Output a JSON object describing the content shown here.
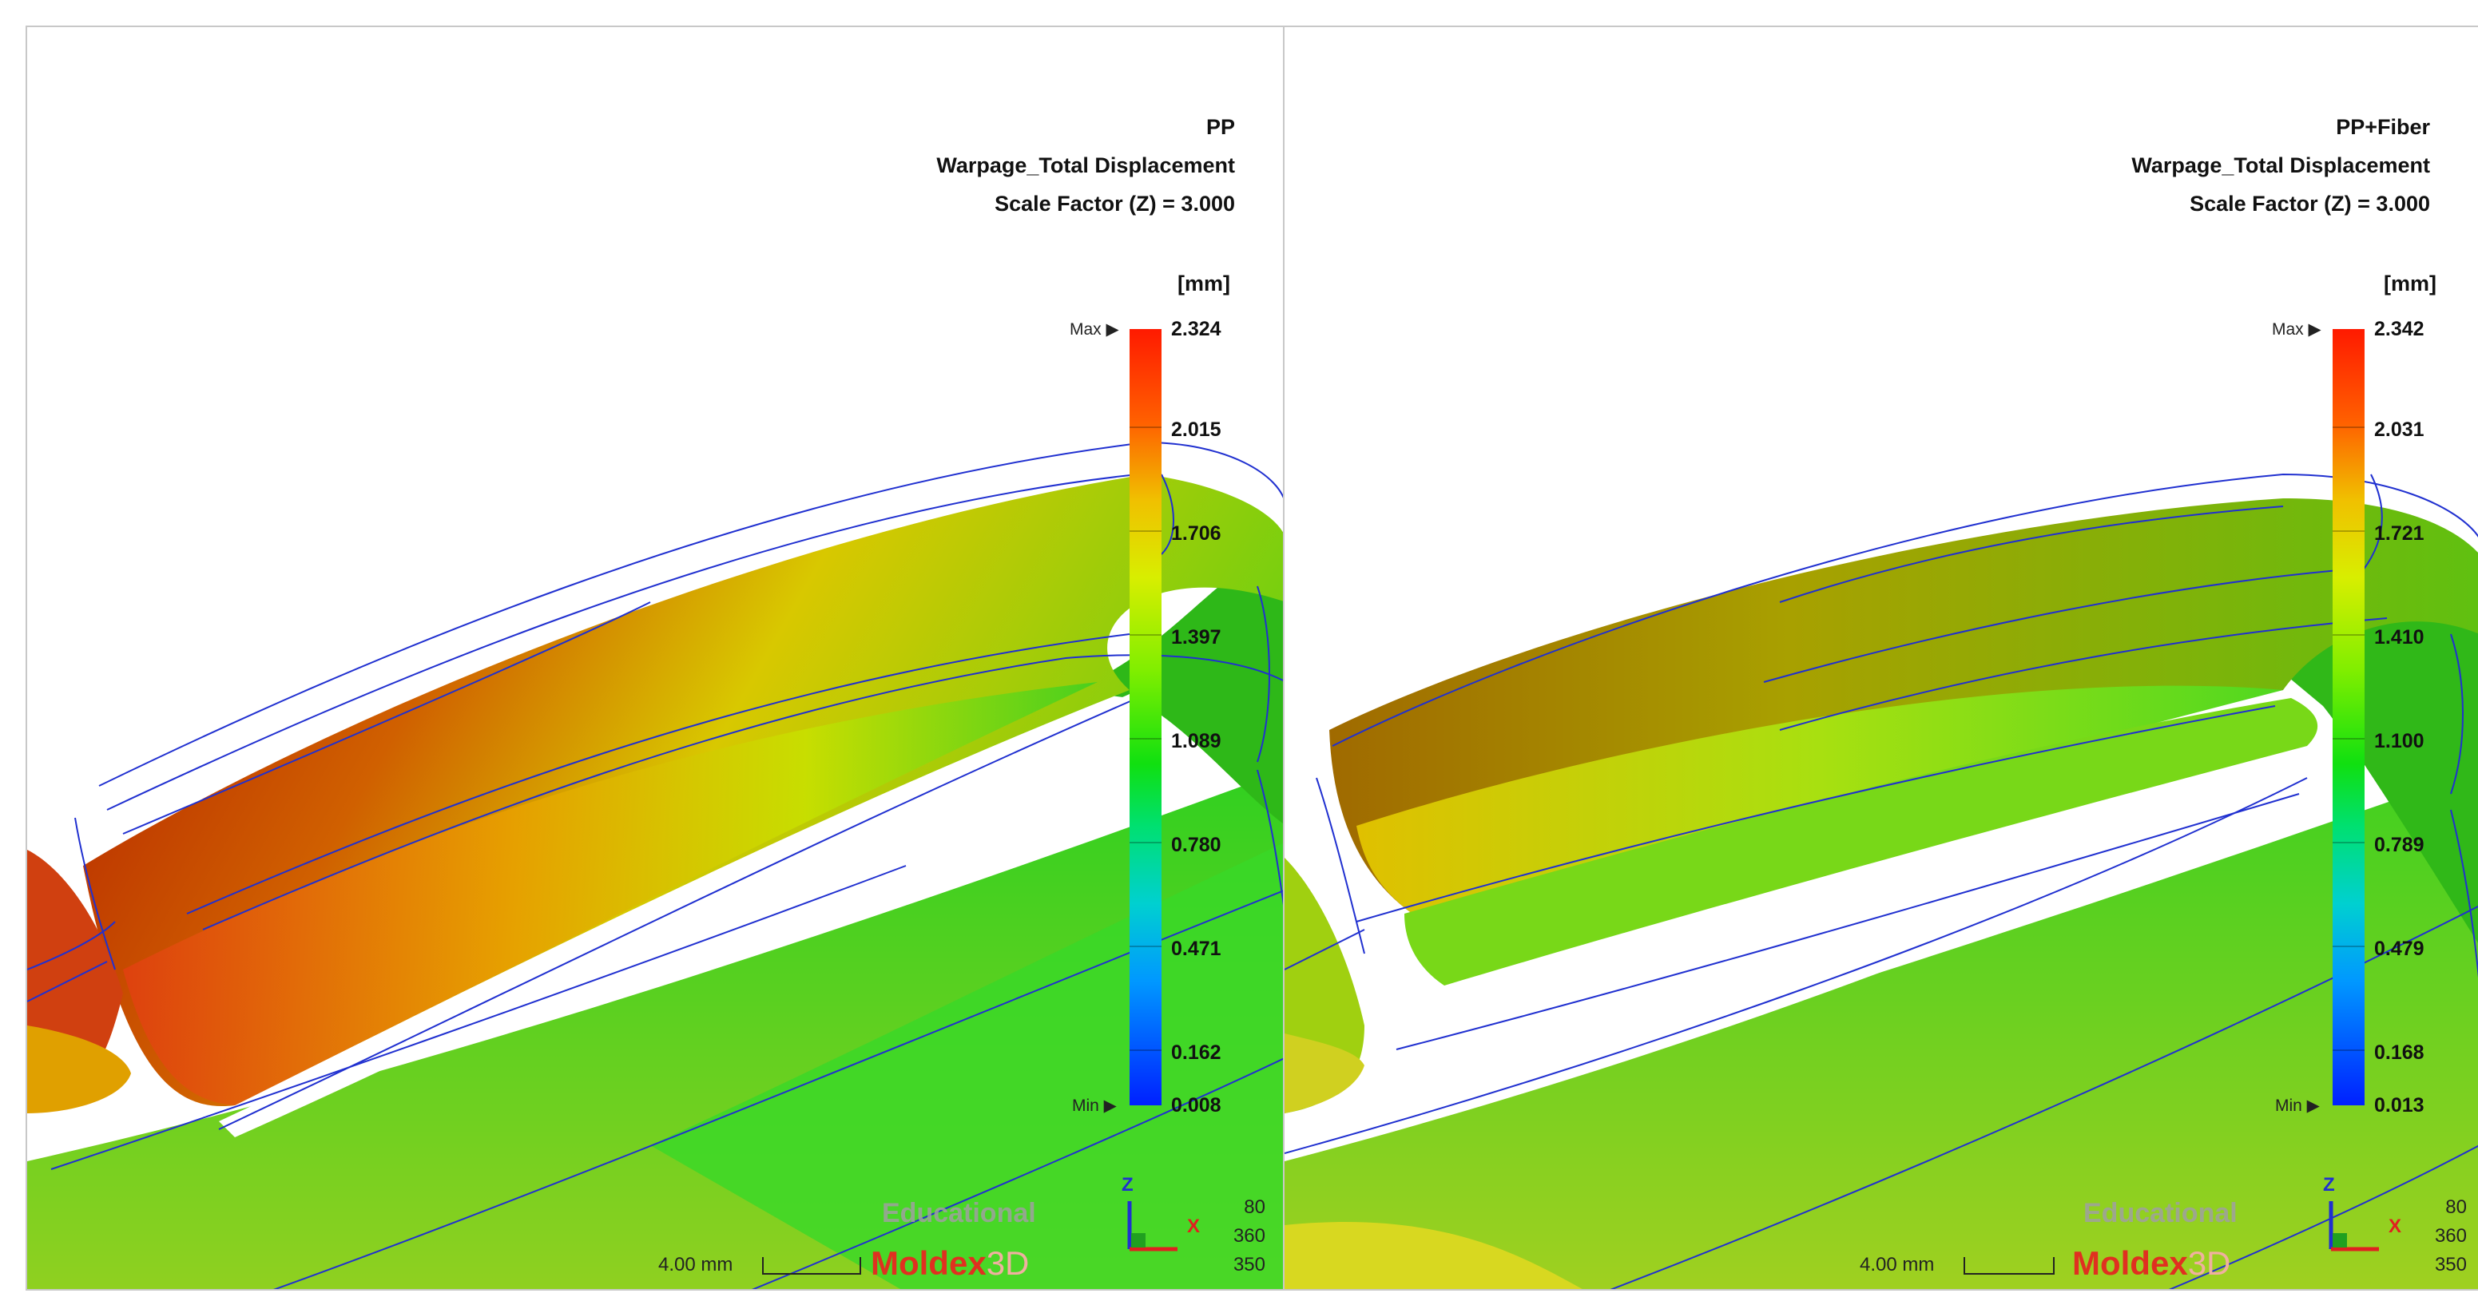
{
  "panels": {
    "left": {
      "material": "PP",
      "result": "Warpage_Total Displacement",
      "scale_factor": "Scale Factor (Z) = 3.000",
      "unit": "[mm]",
      "max_marker": "Max",
      "min_marker": "Min",
      "legend_values": [
        "2.324",
        "2.015",
        "1.706",
        "1.397",
        "1.089",
        "0.780",
        "0.471",
        "0.162",
        "0.008"
      ],
      "watermark": "Educational",
      "brand_name": "Moldex",
      "brand_suffix": "3D",
      "scale_bar_label": "4.00 mm",
      "view_numbers": [
        "80",
        "360",
        "350"
      ],
      "axis_z": "Z",
      "axis_x": "X"
    },
    "right": {
      "material": "PP+Fiber",
      "result": "Warpage_Total Displacement",
      "scale_factor": "Scale Factor (Z) = 3.000",
      "unit": "[mm]",
      "max_marker": "Max",
      "min_marker": "Min",
      "legend_values": [
        "2.342",
        "2.031",
        "1.721",
        "1.410",
        "1.100",
        "0.789",
        "0.479",
        "0.168",
        "0.013"
      ],
      "watermark": "Educational",
      "brand_name": "Moldex",
      "brand_suffix": "3D",
      "scale_bar_label": "4.00 mm",
      "view_numbers": [
        "80",
        "360",
        "350"
      ],
      "axis_z": "Z",
      "axis_x": "X"
    }
  },
  "colors": {
    "wireframe": "#2030d0",
    "max_red": "#ff1a00",
    "min_blue": "#0020ff",
    "brand_red": "#e03020"
  }
}
